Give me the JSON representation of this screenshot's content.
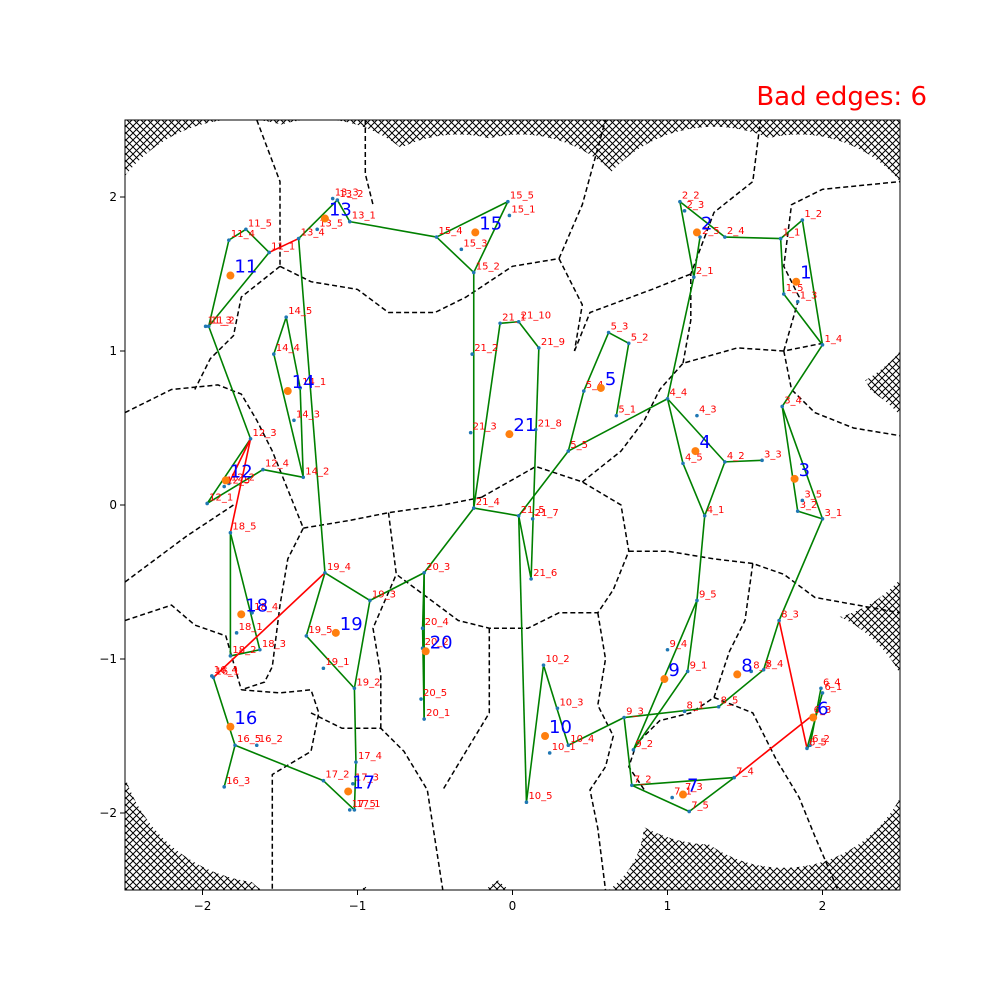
{
  "title": "Bad edges: 6",
  "colors": {
    "good_edge": "#008000",
    "bad_edge": "#ff0000",
    "boundary": "#000000",
    "center": "#ff7f0e",
    "center_label": "#0000ff",
    "node_label": "#ff0000"
  },
  "chart_data": {
    "type": "scatter",
    "title": "Bad edges: 6",
    "xlabel": "",
    "ylabel": "",
    "xlim": [
      -2.5,
      2.5
    ],
    "ylim": [
      -2.5,
      2.5
    ],
    "xticks": [
      "-2",
      "-1",
      "0",
      "1",
      "2"
    ],
    "yticks": [
      "-2",
      "-1",
      "0",
      "1",
      "2"
    ],
    "grid": false,
    "centers": [
      {
        "name": "1",
        "x": 1.83,
        "y": 1.45
      },
      {
        "name": "2",
        "x": 1.19,
        "y": 1.77
      },
      {
        "name": "3",
        "x": 1.82,
        "y": 0.17
      },
      {
        "name": "4",
        "x": 1.18,
        "y": 0.35
      },
      {
        "name": "5",
        "x": 0.57,
        "y": 0.76
      },
      {
        "name": "6",
        "x": 1.94,
        "y": -1.38
      },
      {
        "name": "7",
        "x": 1.1,
        "y": -1.88
      },
      {
        "name": "8",
        "x": 1.45,
        "y": -1.1
      },
      {
        "name": "9",
        "x": 0.98,
        "y": -1.13
      },
      {
        "name": "10",
        "x": 0.21,
        "y": -1.5
      },
      {
        "name": "11",
        "x": -1.82,
        "y": 1.49
      },
      {
        "name": "12",
        "x": -1.85,
        "y": 0.16
      },
      {
        "name": "13",
        "x": -1.21,
        "y": 1.86
      },
      {
        "name": "14",
        "x": -1.45,
        "y": 0.74
      },
      {
        "name": "15",
        "x": -0.24,
        "y": 1.77
      },
      {
        "name": "16",
        "x": -1.82,
        "y": -1.44
      },
      {
        "name": "17",
        "x": -1.06,
        "y": -1.86
      },
      {
        "name": "18",
        "x": -1.75,
        "y": -0.71
      },
      {
        "name": "19",
        "x": -1.14,
        "y": -0.83
      },
      {
        "name": "20",
        "x": -0.56,
        "y": -0.95
      },
      {
        "name": "21",
        "x": -0.02,
        "y": 0.46
      }
    ],
    "nodes": [
      {
        "name": "1_1",
        "x": 1.73,
        "y": 1.73
      },
      {
        "name": "1_2",
        "x": 1.87,
        "y": 1.85
      },
      {
        "name": "1_3",
        "x": 1.84,
        "y": 1.32
      },
      {
        "name": "1_4",
        "x": 2.0,
        "y": 1.04
      },
      {
        "name": "1_5",
        "x": 1.75,
        "y": 1.37
      },
      {
        "name": "2_1",
        "x": 1.17,
        "y": 1.48
      },
      {
        "name": "2_2",
        "x": 1.08,
        "y": 1.97
      },
      {
        "name": "2_3",
        "x": 1.11,
        "y": 1.91
      },
      {
        "name": "2_4",
        "x": 1.37,
        "y": 1.74
      },
      {
        "name": "2_5",
        "x": 1.21,
        "y": 1.74
      },
      {
        "name": "3_1",
        "x": 2.0,
        "y": -0.09
      },
      {
        "name": "3_2",
        "x": 1.84,
        "y": -0.04
      },
      {
        "name": "3_3",
        "x": 1.61,
        "y": 0.29
      },
      {
        "name": "3_4",
        "x": 1.74,
        "y": 0.64
      },
      {
        "name": "3_5",
        "x": 1.87,
        "y": 0.03
      },
      {
        "name": "4_1",
        "x": 1.24,
        "y": -0.07
      },
      {
        "name": "4_2",
        "x": 1.37,
        "y": 0.28
      },
      {
        "name": "4_3",
        "x": 1.19,
        "y": 0.58
      },
      {
        "name": "4_4",
        "x": 1.0,
        "y": 0.69
      },
      {
        "name": "4_5",
        "x": 1.1,
        "y": 0.27
      },
      {
        "name": "5_1",
        "x": 0.67,
        "y": 0.58
      },
      {
        "name": "5_2",
        "x": 0.75,
        "y": 1.05
      },
      {
        "name": "5_3",
        "x": 0.62,
        "y": 1.12
      },
      {
        "name": "5_4",
        "x": 0.46,
        "y": 0.74
      },
      {
        "name": "5_5",
        "x": 0.36,
        "y": 0.35
      },
      {
        "name": "6_1",
        "x": 2.0,
        "y": -1.22
      },
      {
        "name": "6_2",
        "x": 1.92,
        "y": -1.56
      },
      {
        "name": "6_3",
        "x": 1.93,
        "y": -1.37
      },
      {
        "name": "6_4",
        "x": 1.99,
        "y": -1.19
      },
      {
        "name": "6_5",
        "x": 1.9,
        "y": -1.58
      },
      {
        "name": "7_1",
        "x": 1.03,
        "y": -1.9
      },
      {
        "name": "7_2",
        "x": 0.77,
        "y": -1.82
      },
      {
        "name": "7_3",
        "x": 1.1,
        "y": -1.87
      },
      {
        "name": "7_4",
        "x": 1.43,
        "y": -1.77
      },
      {
        "name": "7_5",
        "x": 1.14,
        "y": -1.99
      },
      {
        "name": "8_1",
        "x": 1.11,
        "y": -1.34
      },
      {
        "name": "8_2",
        "x": 1.54,
        "y": -1.08
      },
      {
        "name": "8_3",
        "x": 1.72,
        "y": -0.75
      },
      {
        "name": "8_4",
        "x": 1.62,
        "y": -1.07
      },
      {
        "name": "8_5",
        "x": 1.33,
        "y": -1.31
      },
      {
        "name": "9_1",
        "x": 1.13,
        "y": -1.08
      },
      {
        "name": "9_2",
        "x": 0.78,
        "y": -1.59
      },
      {
        "name": "9_3",
        "x": 0.72,
        "y": -1.38
      },
      {
        "name": "9_4",
        "x": 1.0,
        "y": -0.94
      },
      {
        "name": "9_5",
        "x": 1.19,
        "y": -0.62
      },
      {
        "name": "10_1",
        "x": 0.24,
        "y": -1.61
      },
      {
        "name": "10_2",
        "x": 0.2,
        "y": -1.04
      },
      {
        "name": "10_3",
        "x": 0.29,
        "y": -1.32
      },
      {
        "name": "10_4",
        "x": 0.36,
        "y": -1.56
      },
      {
        "name": "10_5",
        "x": 0.09,
        "y": -1.93
      },
      {
        "name": "11_1",
        "x": -1.57,
        "y": 1.64
      },
      {
        "name": "11_2",
        "x": -1.96,
        "y": 1.16
      },
      {
        "name": "11_3",
        "x": -1.98,
        "y": 1.16
      },
      {
        "name": "11_4",
        "x": -1.83,
        "y": 1.72
      },
      {
        "name": "11_5",
        "x": -1.72,
        "y": 1.79
      },
      {
        "name": "12_1",
        "x": -1.97,
        "y": 0.01
      },
      {
        "name": "12_2",
        "x": -1.83,
        "y": 0.14
      },
      {
        "name": "12_3",
        "x": -1.69,
        "y": 0.43
      },
      {
        "name": "12_4",
        "x": -1.61,
        "y": 0.23
      },
      {
        "name": "12_5",
        "x": -1.86,
        "y": 0.12
      },
      {
        "name": "13_1",
        "x": -1.05,
        "y": 1.84
      },
      {
        "name": "13_2",
        "x": -1.13,
        "y": 1.98
      },
      {
        "name": "13_3",
        "x": -1.16,
        "y": 1.99
      },
      {
        "name": "13_4",
        "x": -1.38,
        "y": 1.73
      },
      {
        "name": "13_5",
        "x": -1.26,
        "y": 1.79
      },
      {
        "name": "14_1",
        "x": -1.37,
        "y": 0.76
      },
      {
        "name": "14_2",
        "x": -1.35,
        "y": 0.18
      },
      {
        "name": "14_3",
        "x": -1.41,
        "y": 0.55
      },
      {
        "name": "14_4",
        "x": -1.54,
        "y": 0.98
      },
      {
        "name": "14_5",
        "x": -1.46,
        "y": 1.22
      },
      {
        "name": "15_1",
        "x": -0.02,
        "y": 1.88
      },
      {
        "name": "15_2",
        "x": -0.25,
        "y": 1.51
      },
      {
        "name": "15_3",
        "x": -0.33,
        "y": 1.66
      },
      {
        "name": "15_4",
        "x": -0.49,
        "y": 1.74
      },
      {
        "name": "15_5",
        "x": -0.03,
        "y": 1.97
      },
      {
        "name": "16_1",
        "x": -1.93,
        "y": -1.12
      },
      {
        "name": "16_2",
        "x": -1.65,
        "y": -1.56
      },
      {
        "name": "16_3",
        "x": -1.86,
        "y": -1.83
      },
      {
        "name": "16_4",
        "x": -1.94,
        "y": -1.11
      },
      {
        "name": "16_5",
        "x": -1.79,
        "y": -1.56
      },
      {
        "name": "17_1",
        "x": -1.02,
        "y": -1.98
      },
      {
        "name": "17_2",
        "x": -1.22,
        "y": -1.79
      },
      {
        "name": "17_3",
        "x": -1.03,
        "y": -1.81
      },
      {
        "name": "17_4",
        "x": -1.01,
        "y": -1.67
      },
      {
        "name": "17_5",
        "x": -1.05,
        "y": -1.98
      },
      {
        "name": "18_1",
        "x": -1.78,
        "y": -0.83
      },
      {
        "name": "18_2",
        "x": -1.82,
        "y": -0.98
      },
      {
        "name": "18_3",
        "x": -1.63,
        "y": -0.94
      },
      {
        "name": "18_4",
        "x": -1.68,
        "y": -0.7
      },
      {
        "name": "18_5",
        "x": -1.82,
        "y": -0.18
      },
      {
        "name": "19_1",
        "x": -1.22,
        "y": -1.06
      },
      {
        "name": "19_2",
        "x": -1.02,
        "y": -1.19
      },
      {
        "name": "19_3",
        "x": -0.92,
        "y": -0.62
      },
      {
        "name": "19_4",
        "x": -1.21,
        "y": -0.44
      },
      {
        "name": "19_5",
        "x": -1.33,
        "y": -0.85
      },
      {
        "name": "20_1",
        "x": -0.57,
        "y": -1.39
      },
      {
        "name": "20_2",
        "x": -0.58,
        "y": -0.93
      },
      {
        "name": "20_3",
        "x": -0.57,
        "y": -0.44
      },
      {
        "name": "20_4",
        "x": -0.58,
        "y": -0.8
      },
      {
        "name": "20_5",
        "x": -0.59,
        "y": -1.26
      },
      {
        "name": "21_1",
        "x": -0.08,
        "y": 1.18
      },
      {
        "name": "21_2",
        "x": -0.26,
        "y": 0.98
      },
      {
        "name": "21_3",
        "x": -0.27,
        "y": 0.47
      },
      {
        "name": "21_4",
        "x": -0.25,
        "y": -0.02
      },
      {
        "name": "21_5",
        "x": 0.04,
        "y": -0.07
      },
      {
        "name": "21_6",
        "x": 0.12,
        "y": -0.48
      },
      {
        "name": "21_7",
        "x": 0.13,
        "y": -0.09
      },
      {
        "name": "21_8",
        "x": 0.15,
        "y": 0.49
      },
      {
        "name": "21_9",
        "x": 0.17,
        "y": 1.02
      },
      {
        "name": "21_10",
        "x": 0.04,
        "y": 1.19
      }
    ],
    "good_edges": [
      [
        "1_1",
        "1_2"
      ],
      [
        "1_2",
        "1_4"
      ],
      [
        "1_1",
        "1_5"
      ],
      [
        "1_5",
        "1_4"
      ],
      [
        "1_4",
        "3_4"
      ],
      [
        "2_2",
        "2_4"
      ],
      [
        "2_2",
        "2_1"
      ],
      [
        "2_1",
        "2_5"
      ],
      [
        "2_4",
        "1_1"
      ],
      [
        "2_1",
        "4_4"
      ],
      [
        "3_4",
        "3_1"
      ],
      [
        "3_1",
        "3_2"
      ],
      [
        "3_2",
        "3_4"
      ],
      [
        "3_3",
        "4_2"
      ],
      [
        "3_1",
        "8_3"
      ],
      [
        "4_4",
        "4_2"
      ],
      [
        "4_2",
        "4_1"
      ],
      [
        "4_1",
        "4_5"
      ],
      [
        "4_5",
        "4_4"
      ],
      [
        "4_1",
        "9_5"
      ],
      [
        "5_3",
        "5_2"
      ],
      [
        "5_2",
        "5_1"
      ],
      [
        "5_3",
        "5_4"
      ],
      [
        "5_4",
        "5_5"
      ],
      [
        "5_5",
        "4_4"
      ],
      [
        "6_4",
        "6_2"
      ],
      [
        "6_2",
        "6_5"
      ],
      [
        "6_5",
        "6_1"
      ],
      [
        "7_2",
        "7_5"
      ],
      [
        "7_5",
        "7_4"
      ],
      [
        "7_4",
        "7_2"
      ],
      [
        "8_4",
        "8_3"
      ],
      [
        "8_4",
        "8_5"
      ],
      [
        "8_5",
        "9_3"
      ],
      [
        "9_5",
        "9_2"
      ],
      [
        "9_2",
        "9_1"
      ],
      [
        "9_1",
        "9_5"
      ],
      [
        "9_3",
        "7_2"
      ],
      [
        "9_3",
        "10_4"
      ],
      [
        "10_5",
        "10_2"
      ],
      [
        "10_2",
        "10_4"
      ],
      [
        "10_5",
        "21_5"
      ],
      [
        "11_1",
        "11_5"
      ],
      [
        "11_5",
        "11_4"
      ],
      [
        "11_4",
        "11_2"
      ],
      [
        "11_2",
        "11_1"
      ],
      [
        "11_2",
        "12_3"
      ],
      [
        "12_3",
        "12_1"
      ],
      [
        "12_1",
        "12_4"
      ],
      [
        "12_4",
        "14_2"
      ],
      [
        "13_1",
        "13_2"
      ],
      [
        "13_2",
        "13_4"
      ],
      [
        "13_1",
        "15_4"
      ],
      [
        "14_5",
        "14_4"
      ],
      [
        "14_4",
        "14_2"
      ],
      [
        "14_5",
        "14_1"
      ],
      [
        "14_1",
        "14_2"
      ],
      [
        "13_4",
        "19_4"
      ],
      [
        "15_5",
        "15_4"
      ],
      [
        "15_4",
        "15_2"
      ],
      [
        "15_5",
        "15_2"
      ],
      [
        "15_2",
        "21_4"
      ],
      [
        "16_1",
        "16_5"
      ],
      [
        "16_5",
        "16_3"
      ],
      [
        "16_5",
        "17_2"
      ],
      [
        "17_2",
        "17_1"
      ],
      [
        "17_1",
        "17_4"
      ],
      [
        "17_4",
        "19_2"
      ],
      [
        "18_5",
        "18_2"
      ],
      [
        "18_2",
        "18_3"
      ],
      [
        "18_3",
        "18_5"
      ],
      [
        "19_4",
        "19_5"
      ],
      [
        "19_5",
        "19_2"
      ],
      [
        "19_2",
        "19_3"
      ],
      [
        "19_3",
        "20_3"
      ],
      [
        "19_4",
        "19_3"
      ],
      [
        "20_3",
        "20_1"
      ],
      [
        "20_1",
        "20_4"
      ],
      [
        "20_4",
        "20_3"
      ],
      [
        "20_3",
        "21_4"
      ],
      [
        "21_4",
        "21_1"
      ],
      [
        "21_1",
        "21_10"
      ],
      [
        "21_10",
        "21_9"
      ],
      [
        "21_9",
        "21_6"
      ],
      [
        "21_6",
        "21_5"
      ],
      [
        "21_5",
        "21_4"
      ],
      [
        "21_5",
        "5_5"
      ]
    ],
    "bad_edges": [
      [
        "11_1",
        "13_4"
      ],
      [
        "12_3",
        "12_2"
      ],
      [
        "12_3",
        "18_5"
      ],
      [
        "19_4",
        "16_1"
      ],
      [
        "8_3",
        "6_5"
      ],
      [
        "7_4",
        "6_3"
      ]
    ]
  }
}
